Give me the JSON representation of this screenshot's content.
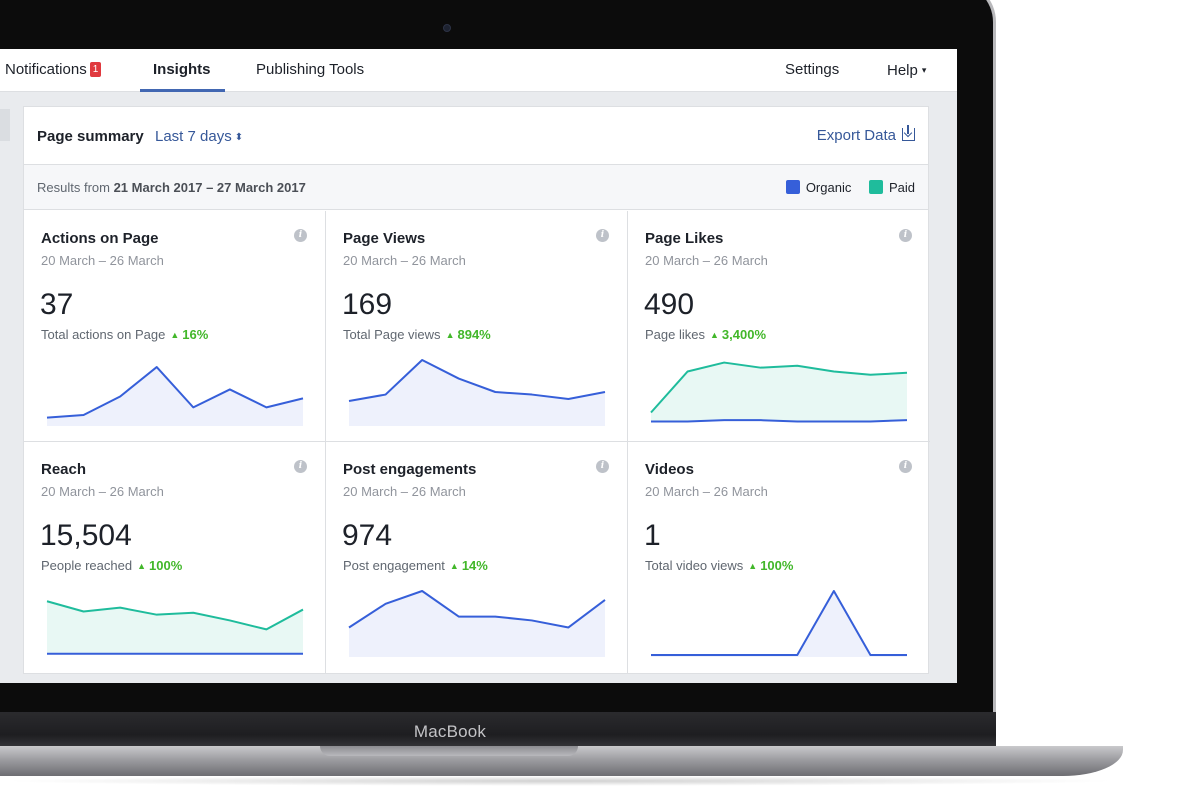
{
  "topbar": {
    "tabs": [
      {
        "label": "Notifications",
        "badge": "1"
      },
      {
        "label": "Insights",
        "active": true
      },
      {
        "label": "Publishing Tools"
      }
    ],
    "right_items": [
      {
        "label": "Settings"
      },
      {
        "label": "Help",
        "caret": "▾"
      }
    ]
  },
  "summary": {
    "title": "Page summary",
    "range": "Last 7 days",
    "range_icon": "⬍",
    "export_label": "Export Data",
    "results_prefix": "Results from ",
    "results_range": "21 March 2017 – 27 March 2017",
    "legend": [
      {
        "label": "Organic",
        "color": "#365fd9"
      },
      {
        "label": "Paid",
        "color": "#1fbc9c"
      }
    ]
  },
  "cards": [
    {
      "title": "Actions on Page",
      "date": "20 March – 26 March",
      "value": "37",
      "sub": "Total actions on Page",
      "delta": "16%"
    },
    {
      "title": "Page Views",
      "date": "20 March – 26 March",
      "value": "169",
      "sub": "Total Page views",
      "delta": "894%"
    },
    {
      "title": "Page Likes",
      "date": "20 March – 26 March",
      "value": "490",
      "sub": "Page likes",
      "delta": "3,400%"
    },
    {
      "title": "Reach",
      "date": "20 March – 26 March",
      "value": "15,504",
      "sub": "People reached",
      "delta": "100%"
    },
    {
      "title": "Post engagements",
      "date": "20 March – 26 March",
      "value": "974",
      "sub": "Post engagement",
      "delta": "14%"
    },
    {
      "title": "Videos",
      "date": "20 March – 26 March",
      "value": "1",
      "sub": "Total video views",
      "delta": "100%"
    }
  ],
  "sparklines": [
    {
      "organic": [
        0.1,
        0.14,
        0.43,
        0.89,
        0.26,
        0.54,
        0.26,
        0.4
      ],
      "paid": null
    },
    {
      "organic": [
        0.36,
        0.46,
        1.0,
        0.71,
        0.5,
        0.46,
        0.39,
        0.5
      ],
      "paid": null
    },
    {
      "organic": [
        0.04,
        0.04,
        0.06,
        0.06,
        0.04,
        0.04,
        0.04,
        0.06
      ],
      "paid": [
        0.18,
        0.82,
        0.96,
        0.88,
        0.91,
        0.82,
        0.77,
        0.8
      ]
    },
    {
      "organic": [
        0.02,
        0.02,
        0.02,
        0.02,
        0.02,
        0.02,
        0.02,
        0.02
      ],
      "paid": [
        0.84,
        0.68,
        0.74,
        0.63,
        0.66,
        0.54,
        0.4,
        0.71
      ]
    },
    {
      "organic": [
        0.43,
        0.8,
        1.0,
        0.6,
        0.6,
        0.54,
        0.43,
        0.86
      ]
    },
    {
      "organic": [
        0.0,
        0.0,
        0.0,
        0.0,
        0.0,
        1.0,
        0.0,
        0.0
      ]
    }
  ],
  "device": {
    "brand": "MacBook"
  },
  "colors": {
    "accent": "#4267b2",
    "link": "#365899",
    "organic": "#365fd9",
    "organic_fill": "#eef1fc",
    "paid": "#1fbc9c",
    "paid_fill": "#e8f8f4",
    "positive": "#42b72a",
    "badge": "#e0393e"
  }
}
